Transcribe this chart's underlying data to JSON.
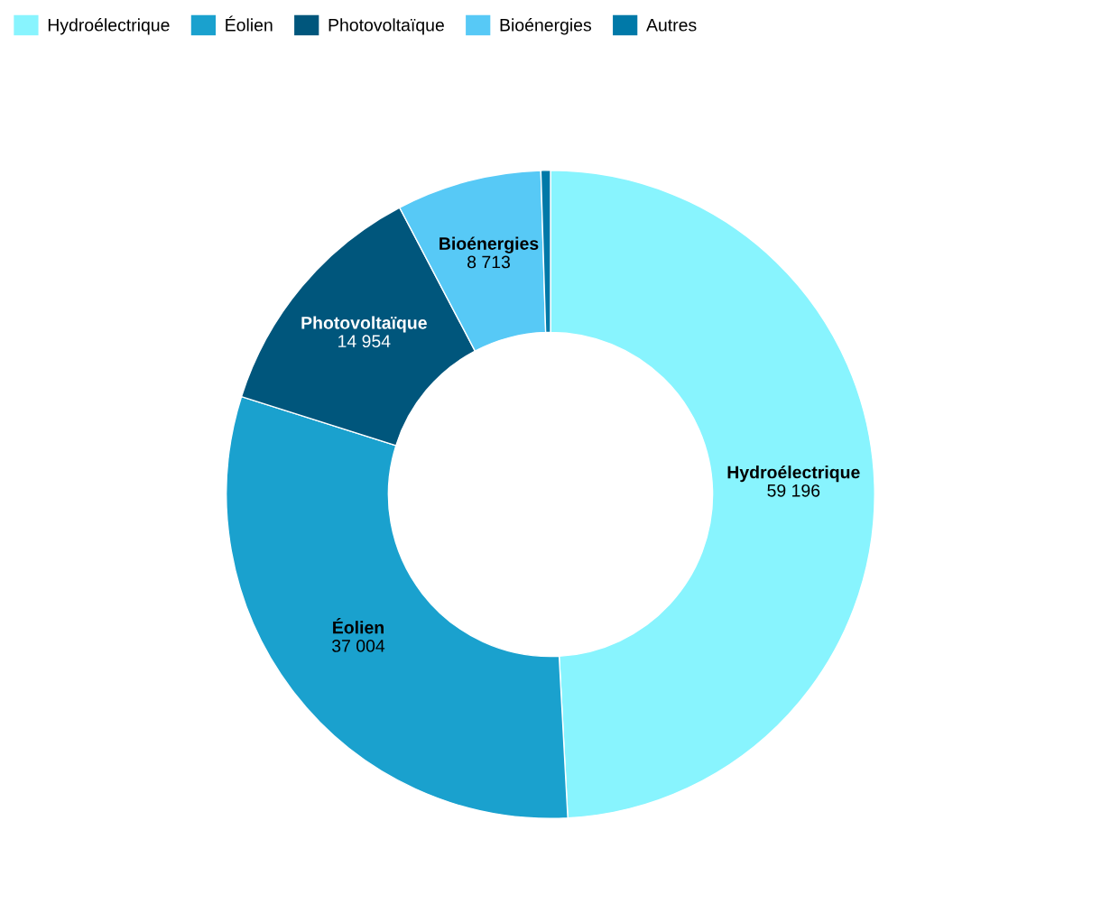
{
  "chart_data": {
    "type": "donut",
    "categories": [
      "Hydroélectrique",
      "Éolien",
      "Photovoltaïque",
      "Bioénergies",
      "Autres"
    ],
    "values": [
      59196,
      37004,
      14954,
      8713,
      570
    ],
    "colors": [
      "#88f4fe",
      "#1aa1ce",
      "#00567c",
      "#57c9f6",
      "#0079a8"
    ],
    "value_labels": [
      "59 196",
      "37 004",
      "14 954",
      "8 713",
      null
    ],
    "legend": "top left"
  }
}
